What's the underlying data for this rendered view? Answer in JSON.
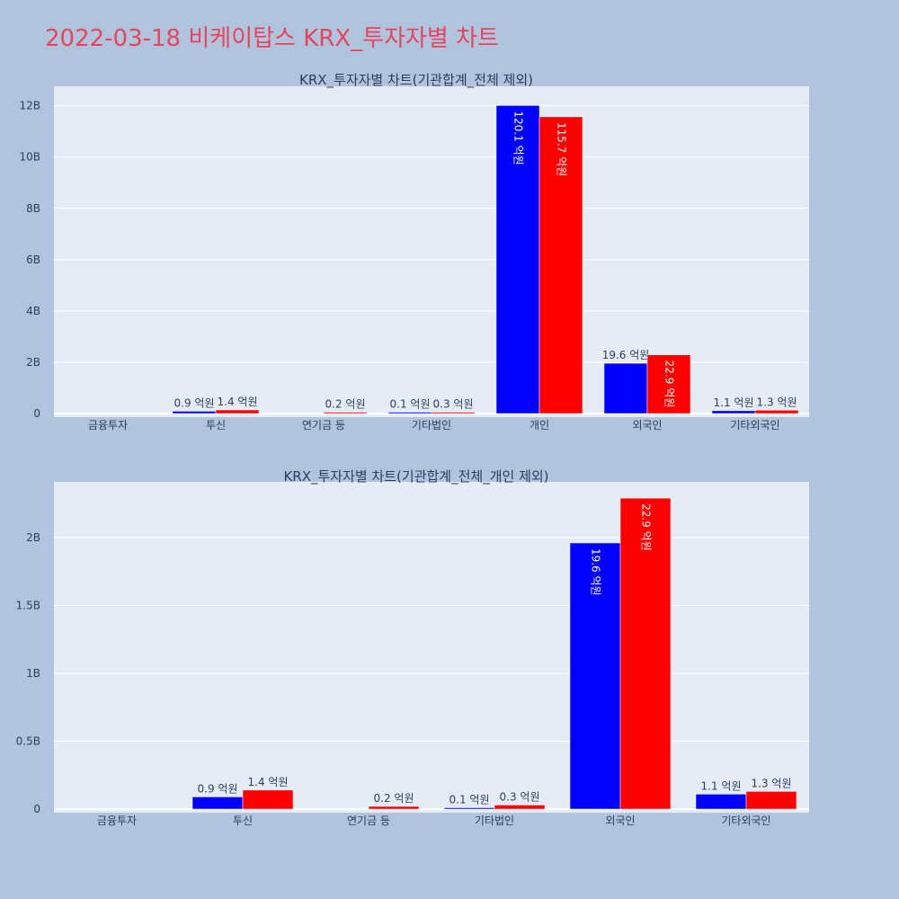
{
  "page": {
    "title": "2022-03-18 비케이탑스 KRX_투자자별 차트"
  },
  "colors": {
    "buy": "#0000ff",
    "sell": "#ff0000",
    "plot_bg": "#e5ecf6",
    "page_bg": "#b0c4de",
    "title": "#e8455d"
  },
  "chart_data": [
    {
      "type": "bar",
      "title": "KRX_투자자별 차트(기관합계_전체 제외)",
      "categories": [
        "금융투자",
        "투신",
        "연기금 등",
        "기타법인",
        "개인",
        "외국인",
        "기타외국인"
      ],
      "series": [
        {
          "color": "#0000ff",
          "values": [
            0,
            90000000,
            0,
            10000000,
            12010000000,
            1960000000,
            110000000
          ],
          "labels": [
            "",
            "0.9 억원",
            "",
            "0.1 억원",
            "120.1 억원",
            "19.6 억원",
            "1.1 억원"
          ]
        },
        {
          "color": "#ff0000",
          "values": [
            0,
            140000000,
            20000000,
            30000000,
            11570000000,
            2290000000,
            130000000
          ],
          "labels": [
            "",
            "1.4 억원",
            "0.2 억원",
            "0.3 억원",
            "115.7 억원",
            "22.9 억원",
            "1.3 억원"
          ]
        }
      ],
      "yticks": [
        0,
        2000000000,
        4000000000,
        6000000000,
        8000000000,
        10000000000,
        12000000000
      ],
      "ytick_labels": [
        "0",
        "2B",
        "4B",
        "6B",
        "8B",
        "10B",
        "12B"
      ],
      "ylim": [
        0,
        12760000000
      ],
      "grid": true
    },
    {
      "type": "bar",
      "title": "KRX_투자자별 차트(기관합계_전체_개인 제외)",
      "categories": [
        "금융투자",
        "투신",
        "연기금 등",
        "기타법인",
        "외국인",
        "기타외국인"
      ],
      "series": [
        {
          "color": "#0000ff",
          "values": [
            0,
            90000000,
            0,
            10000000,
            1960000000,
            110000000
          ],
          "labels": [
            "",
            "0.9 억원",
            "",
            "0.1 억원",
            "19.6 억원",
            "1.1 억원"
          ]
        },
        {
          "color": "#ff0000",
          "values": [
            0,
            140000000,
            20000000,
            30000000,
            2290000000,
            130000000
          ],
          "labels": [
            "",
            "1.4 억원",
            "0.2 억원",
            "0.3 억원",
            "22.9 억원",
            "1.3 억원"
          ]
        }
      ],
      "yticks": [
        0,
        500000000,
        1000000000,
        1500000000,
        2000000000
      ],
      "ytick_labels": [
        "0",
        "0.5B",
        "1B",
        "1.5B",
        "2B"
      ],
      "ylim": [
        0,
        2410000000
      ],
      "grid": true
    }
  ]
}
